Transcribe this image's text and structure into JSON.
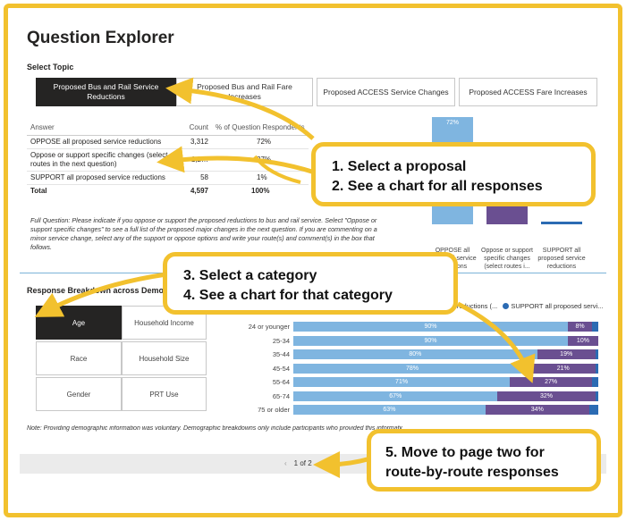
{
  "report": {
    "title": "Question Explorer",
    "select_topic_label": "Select Topic",
    "tabs": [
      {
        "label": "Proposed Bus and Rail Service Reductions",
        "active": true
      },
      {
        "label": "Proposed Bus and Rail Fare Increases",
        "active": false
      },
      {
        "label": "Proposed ACCESS Service Changes",
        "active": false
      },
      {
        "label": "Proposed ACCESS Fare Increases",
        "active": false
      }
    ],
    "answers_table": {
      "headers": [
        "Answer",
        "Count",
        "% of Question Respondents"
      ],
      "rows": [
        {
          "answer": "OPPOSE all proposed service reductions",
          "count": "3,312",
          "pct": "72%"
        },
        {
          "answer": "Oppose or support specific changes (select routes in the next question)",
          "count": "1,2…",
          "pct": "27%"
        },
        {
          "answer": "SUPPORT all proposed service reductions",
          "count": "58",
          "pct": "1%"
        }
      ],
      "total": {
        "label": "Total",
        "count": "4,597",
        "pct": "100%"
      }
    },
    "full_question": "Full Question: Please indicate if you oppose or support the proposed reductions to bus and rail service. Select \"Oppose or support specific changes\" to see a full list of the proposed major changes in the next question. If you are commenting on a minor service change, select any of the support or oppose options and write your route(s) and comment(s) in the box that follows.",
    "mini_chart": {
      "bars": [
        {
          "label": "OPPOSE all proposed service reductions",
          "value": 72,
          "display": "72%",
          "color": "#7fb5e0"
        },
        {
          "label": "Oppose or support specific changes (select routes i...",
          "value": 27,
          "display": "",
          "color": "#6a4f91"
        },
        {
          "label": "SUPPORT all proposed service reductions",
          "value": 1,
          "display": "",
          "color": "#2b6bb3"
        }
      ]
    },
    "response_title": "Response Breakdown across Demographics",
    "categories": [
      {
        "label": "Age",
        "active": true
      },
      {
        "label": "Household Income",
        "active": false
      },
      {
        "label": "Race",
        "active": false
      },
      {
        "label": "Household Size",
        "active": false
      },
      {
        "label": "Gender",
        "active": false
      },
      {
        "label": "PRT Use",
        "active": false
      }
    ],
    "legend_text": "c reductions (...",
    "legend_support": "SUPPORT all proposed servi...",
    "note": "Note: Providing demographic information was voluntary. Demographic breakdowns only include participants who provided this information.",
    "pager": {
      "text": "1 of 2",
      "prev": "‹",
      "next": "›"
    }
  },
  "chart_data": {
    "type": "bar",
    "stacked": true,
    "orientation": "horizontal",
    "categories": [
      "24 or younger",
      "25-34",
      "35-44",
      "45-54",
      "55-64",
      "65-74",
      "75 or older"
    ],
    "series": [
      {
        "name": "OPPOSE all proposed service reductions",
        "color": "#7fb5e0",
        "values": [
          90,
          90,
          80,
          78,
          71,
          67,
          63
        ],
        "labels": [
          "90%",
          "90%",
          "80%",
          "78%",
          "71%",
          "67%",
          "63%"
        ]
      },
      {
        "name": "Oppose or support specific changes (select routes in the next question)",
        "color": "#6a4f91",
        "values": [
          8,
          10,
          19,
          21,
          27,
          32,
          34
        ],
        "labels": [
          "8%",
          "10%",
          "19%",
          "21%",
          "27%",
          "32%",
          "34%"
        ]
      },
      {
        "name": "SUPPORT all proposed service reductions",
        "color": "#2b6bb3",
        "values": [
          2,
          0,
          1,
          1,
          2,
          1,
          3
        ],
        "labels": [
          "",
          "",
          "",
          "",
          "",
          "",
          ""
        ]
      }
    ],
    "xlim": [
      0,
      100
    ]
  },
  "callouts": [
    {
      "lines": [
        "1. Select a proposal",
        "2. See a chart for all responses"
      ]
    },
    {
      "lines": [
        "3. Select a category",
        "4. See a chart for that category"
      ]
    },
    {
      "lines": [
        "5. Move to page two for",
        "route-by-route responses"
      ]
    }
  ],
  "colors": {
    "accent": "#f2c12e",
    "oppose": "#7fb5e0",
    "specific": "#6a4f91",
    "support": "#2b6bb3"
  }
}
